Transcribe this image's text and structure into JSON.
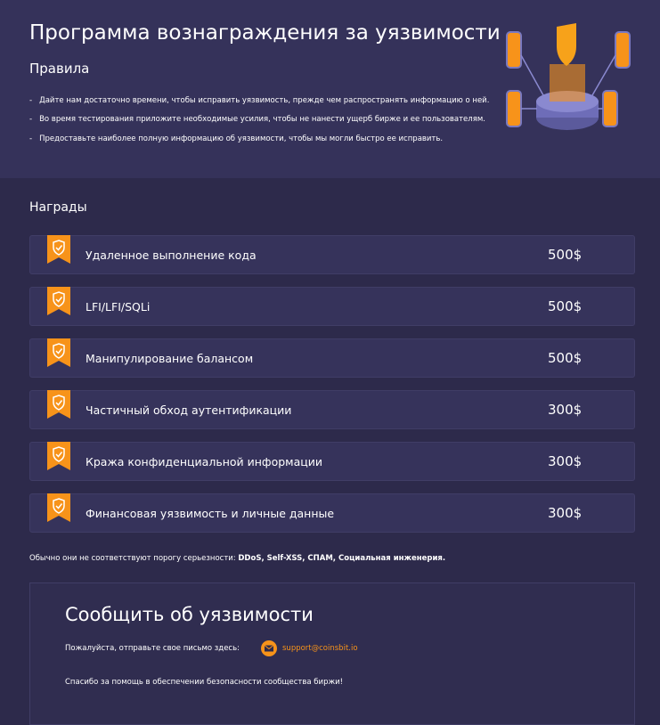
{
  "header": {
    "title": "Программа вознаграждения за уязвимости",
    "rules_title": "Правила",
    "rules": [
      "Дайте нам достаточно времени, чтобы исправить уязвимость, прежде чем распространять информацию о ней.",
      "Во время тестирования приложите необходимые усилия, чтобы не нанести ущерб бирже и ее пользователям.",
      "Предоставьте наиболее полную информацию об уязвимости, чтобы мы могли быстро ее исправить."
    ]
  },
  "rewards": {
    "title": "Награды",
    "items": [
      {
        "name": "Удаленное выполнение кода",
        "amount": "500$"
      },
      {
        "name": "LFI/LFI/SQLi",
        "amount": "500$"
      },
      {
        "name": "Манипулирование балансом",
        "amount": "500$"
      },
      {
        "name": "Частичный обход аутентификации",
        "amount": "300$"
      },
      {
        "name": "Кража конфиденциальной информации",
        "amount": "300$"
      },
      {
        "name": "Финансовая уязвимость и личные данные",
        "amount": "300$"
      }
    ],
    "note": {
      "text": "Обычно они не соответствуют порогу серьезности:",
      "bold": "DDoS, Self-XSS, СПАМ, Социальная инженерия."
    }
  },
  "report": {
    "title": "Сообщить об уязвимости",
    "prompt": "Пожалуйста, отправьте свое письмо здесь:",
    "email": "support@coinsbit.io",
    "thanks": "Спасибо за помощь в обеспечении безопасности сообщества биржи!"
  }
}
